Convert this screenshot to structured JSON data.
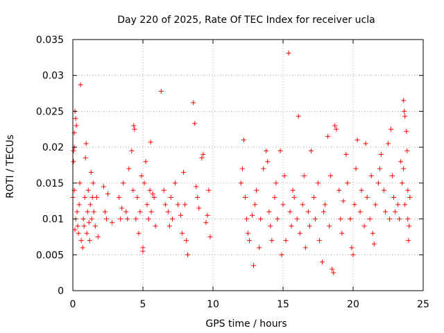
{
  "chart_data": {
    "type": "scatter",
    "title": "Day 220 of 2025, Rate Of TEC Index for receiver ucla",
    "xlabel": "GPS time / hours",
    "ylabel": "ROTI / TECUs",
    "xlim": [
      0,
      25
    ],
    "ylim": [
      0,
      0.035
    ],
    "xticks": [
      0,
      5,
      10,
      15,
      20,
      25
    ],
    "xtick_labels": [
      "0",
      "5",
      "10",
      "15",
      "20",
      "25"
    ],
    "yticks": [
      0,
      0.005,
      0.01,
      0.015,
      0.02,
      0.025,
      0.03,
      0.035
    ],
    "ytick_labels": [
      "0",
      "0.005",
      "0.01",
      "0.015",
      "0.02",
      "0.025",
      "0.03",
      "0.035"
    ],
    "grid": true,
    "marker": "+",
    "color": "#ff0000",
    "series": [
      {
        "points": [
          [
            0.05,
            0.018
          ],
          [
            0.1,
            0.022
          ],
          [
            0.15,
            0.025
          ],
          [
            0.2,
            0.024
          ],
          [
            0.25,
            0.023
          ],
          [
            0.05,
            0.0195
          ],
          [
            0.1,
            0.02
          ],
          [
            0.0,
            0.013
          ],
          [
            0.1,
            0.014
          ],
          [
            0.15,
            0.0085
          ],
          [
            0.2,
            0.01
          ],
          [
            0.3,
            0.011
          ],
          [
            0.35,
            0.009
          ],
          [
            0.4,
            0.008
          ],
          [
            0.45,
            0.012
          ],
          [
            0.5,
            0.015
          ],
          [
            0.55,
            0.0287
          ],
          [
            0.6,
            0.007
          ],
          [
            0.7,
            0.006
          ],
          [
            0.75,
            0.01
          ],
          [
            0.8,
            0.009
          ],
          [
            0.85,
            0.013
          ],
          [
            0.9,
            0.0185
          ],
          [
            0.95,
            0.0205
          ],
          [
            1.0,
            0.008
          ],
          [
            1.05,
            0.011
          ],
          [
            1.1,
            0.014
          ],
          [
            1.15,
            0.0095
          ],
          [
            1.2,
            0.007
          ],
          [
            1.25,
            0.012
          ],
          [
            1.3,
            0.0165
          ],
          [
            1.35,
            0.01
          ],
          [
            1.4,
            0.013
          ],
          [
            1.45,
            0.015
          ],
          [
            1.5,
            0.011
          ],
          [
            1.6,
            0.009
          ],
          [
            1.7,
            0.013
          ],
          [
            1.8,
            0.0075
          ],
          [
            2.2,
            0.0145
          ],
          [
            2.3,
            0.011
          ],
          [
            2.4,
            0.01
          ],
          [
            2.5,
            0.0135
          ],
          [
            2.8,
            0.0095
          ],
          [
            3.3,
            0.013
          ],
          [
            3.4,
            0.01
          ],
          [
            3.5,
            0.0115
          ],
          [
            3.6,
            0.015
          ],
          [
            3.8,
            0.011
          ],
          [
            3.9,
            0.01
          ],
          [
            4.0,
            0.017
          ],
          [
            4.2,
            0.0195
          ],
          [
            4.3,
            0.014
          ],
          [
            4.35,
            0.023
          ],
          [
            4.4,
            0.0225
          ],
          [
            4.5,
            0.01
          ],
          [
            4.6,
            0.013
          ],
          [
            4.7,
            0.008
          ],
          [
            4.8,
            0.011
          ],
          [
            4.9,
            0.016
          ],
          [
            5.0,
            0.006
          ],
          [
            5.0,
            0.0055
          ],
          [
            5.1,
            0.015
          ],
          [
            5.2,
            0.018
          ],
          [
            5.3,
            0.012
          ],
          [
            5.4,
            0.01
          ],
          [
            5.5,
            0.014
          ],
          [
            5.55,
            0.0207
          ],
          [
            5.6,
            0.011
          ],
          [
            5.7,
            0.0135
          ],
          [
            5.8,
            0.013
          ],
          [
            5.9,
            0.009
          ],
          [
            6.3,
            0.0278
          ],
          [
            6.5,
            0.014
          ],
          [
            6.6,
            0.012
          ],
          [
            6.8,
            0.011
          ],
          [
            6.9,
            0.009
          ],
          [
            7.0,
            0.013
          ],
          [
            7.1,
            0.01
          ],
          [
            7.3,
            0.015
          ],
          [
            7.5,
            0.012
          ],
          [
            7.7,
            0.0105
          ],
          [
            7.8,
            0.008
          ],
          [
            7.9,
            0.0165
          ],
          [
            8.0,
            0.012
          ],
          [
            8.1,
            0.007
          ],
          [
            8.2,
            0.005
          ],
          [
            8.6,
            0.0262
          ],
          [
            8.7,
            0.0233
          ],
          [
            8.8,
            0.0145
          ],
          [
            8.9,
            0.013
          ],
          [
            9.0,
            0.0115
          ],
          [
            9.2,
            0.0185
          ],
          [
            9.3,
            0.019
          ],
          [
            9.5,
            0.0095
          ],
          [
            9.6,
            0.0105
          ],
          [
            9.7,
            0.014
          ],
          [
            9.8,
            0.0075
          ],
          [
            12.0,
            0.015
          ],
          [
            12.1,
            0.017
          ],
          [
            12.2,
            0.021
          ],
          [
            12.3,
            0.013
          ],
          [
            12.4,
            0.01
          ],
          [
            12.5,
            0.008
          ],
          [
            12.6,
            0.007
          ],
          [
            12.8,
            0.0105
          ],
          [
            12.9,
            0.0035
          ],
          [
            13.0,
            0.012
          ],
          [
            13.1,
            0.014
          ],
          [
            13.3,
            0.006
          ],
          [
            13.4,
            0.01
          ],
          [
            13.6,
            0.017
          ],
          [
            13.8,
            0.0195
          ],
          [
            13.9,
            0.018
          ],
          [
            14.0,
            0.011
          ],
          [
            14.1,
            0.009
          ],
          [
            14.2,
            0.007
          ],
          [
            14.4,
            0.013
          ],
          [
            14.5,
            0.015
          ],
          [
            14.6,
            0.01
          ],
          [
            14.8,
            0.0195
          ],
          [
            14.9,
            0.005
          ],
          [
            15.0,
            0.012
          ],
          [
            15.1,
            0.016
          ],
          [
            15.2,
            0.007
          ],
          [
            15.4,
            0.0331
          ],
          [
            15.5,
            0.011
          ],
          [
            15.6,
            0.009
          ],
          [
            15.7,
            0.014
          ],
          [
            15.8,
            0.013
          ],
          [
            16.0,
            0.01
          ],
          [
            16.1,
            0.0243
          ],
          [
            16.2,
            0.008
          ],
          [
            16.4,
            0.012
          ],
          [
            16.5,
            0.016
          ],
          [
            16.6,
            0.006
          ],
          [
            16.8,
            0.011
          ],
          [
            16.9,
            0.009
          ],
          [
            17.0,
            0.0195
          ],
          [
            17.2,
            0.013
          ],
          [
            17.3,
            0.01
          ],
          [
            17.5,
            0.015
          ],
          [
            17.6,
            0.007
          ],
          [
            17.8,
            0.004
          ],
          [
            17.9,
            0.011
          ],
          [
            18.0,
            0.012
          ],
          [
            18.2,
            0.0215
          ],
          [
            18.3,
            0.009
          ],
          [
            18.4,
            0.016
          ],
          [
            18.5,
            0.003
          ],
          [
            18.6,
            0.0025
          ],
          [
            18.7,
            0.023
          ],
          [
            18.8,
            0.0225
          ],
          [
            19.0,
            0.014
          ],
          [
            19.1,
            0.01
          ],
          [
            19.2,
            0.008
          ],
          [
            19.3,
            0.0125
          ],
          [
            19.5,
            0.019
          ],
          [
            19.6,
            0.015
          ],
          [
            19.8,
            0.01
          ],
          [
            19.9,
            0.006
          ],
          [
            20.0,
            0.005
          ],
          [
            20.1,
            0.012
          ],
          [
            20.2,
            0.017
          ],
          [
            20.3,
            0.021
          ],
          [
            20.5,
            0.011
          ],
          [
            20.6,
            0.014
          ],
          [
            20.8,
            0.009
          ],
          [
            20.9,
            0.0205
          ],
          [
            21.0,
            0.013
          ],
          [
            21.2,
            0.01
          ],
          [
            21.3,
            0.016
          ],
          [
            21.4,
            0.008
          ],
          [
            21.5,
            0.0065
          ],
          [
            21.6,
            0.012
          ],
          [
            21.8,
            0.015
          ],
          [
            21.9,
            0.017
          ],
          [
            22.0,
            0.019
          ],
          [
            22.2,
            0.014
          ],
          [
            22.3,
            0.011
          ],
          [
            22.5,
            0.0205
          ],
          [
            22.6,
            0.01
          ],
          [
            22.7,
            0.0225
          ],
          [
            22.8,
            0.016
          ],
          [
            22.9,
            0.013
          ],
          [
            23.0,
            0.011
          ],
          [
            23.2,
            0.012
          ],
          [
            23.3,
            0.01
          ],
          [
            23.6,
            0.0265
          ],
          [
            23.65,
            0.025
          ],
          [
            23.7,
            0.0243
          ],
          [
            23.8,
            0.0222
          ],
          [
            23.85,
            0.0195
          ],
          [
            23.9,
            0.014
          ],
          [
            23.95,
            0.007
          ],
          [
            24.0,
            0.009
          ],
          [
            24.05,
            0.013
          ],
          [
            23.5,
            0.015
          ],
          [
            23.4,
            0.018
          ],
          [
            23.6,
            0.017
          ],
          [
            23.7,
            0.012
          ],
          [
            23.9,
            0.01
          ]
        ]
      }
    ]
  }
}
